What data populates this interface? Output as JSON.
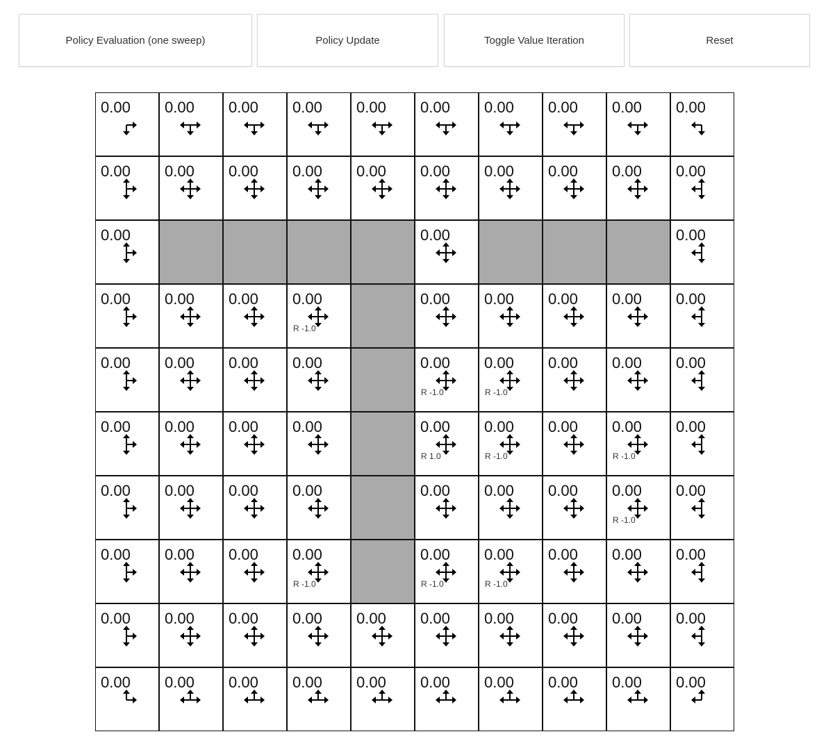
{
  "toolbar": {
    "policy_evaluation_label": "Policy Evaluation (one sweep)",
    "policy_update_label": "Policy Update",
    "toggle_value_iteration_label": "Toggle Value Iteration",
    "reset_label": "Reset"
  },
  "gridworld": {
    "rows": 10,
    "cols": 10,
    "wall_color": "#aaaaaa",
    "values": [
      [
        "0.00",
        "0.00",
        "0.00",
        "0.00",
        "0.00",
        "0.00",
        "0.00",
        "0.00",
        "0.00",
        "0.00"
      ],
      [
        "0.00",
        "0.00",
        "0.00",
        "0.00",
        "0.00",
        "0.00",
        "0.00",
        "0.00",
        "0.00",
        "0.00"
      ],
      [
        "0.00",
        null,
        null,
        null,
        null,
        "0.00",
        null,
        null,
        null,
        "0.00"
      ],
      [
        "0.00",
        "0.00",
        "0.00",
        "0.00",
        null,
        "0.00",
        "0.00",
        "0.00",
        "0.00",
        "0.00"
      ],
      [
        "0.00",
        "0.00",
        "0.00",
        "0.00",
        null,
        "0.00",
        "0.00",
        "0.00",
        "0.00",
        "0.00"
      ],
      [
        "0.00",
        "0.00",
        "0.00",
        "0.00",
        null,
        "0.00",
        "0.00",
        "0.00",
        "0.00",
        "0.00"
      ],
      [
        "0.00",
        "0.00",
        "0.00",
        "0.00",
        null,
        "0.00",
        "0.00",
        "0.00",
        "0.00",
        "0.00"
      ],
      [
        "0.00",
        "0.00",
        "0.00",
        "0.00",
        null,
        "0.00",
        "0.00",
        "0.00",
        "0.00",
        "0.00"
      ],
      [
        "0.00",
        "0.00",
        "0.00",
        "0.00",
        "0.00",
        "0.00",
        "0.00",
        "0.00",
        "0.00",
        "0.00"
      ],
      [
        "0.00",
        "0.00",
        "0.00",
        "0.00",
        "0.00",
        "0.00",
        "0.00",
        "0.00",
        "0.00",
        "0.00"
      ]
    ],
    "rewards": [
      [
        "",
        "",
        "",
        "",
        "",
        "",
        "",
        "",
        "",
        ""
      ],
      [
        "",
        "",
        "",
        "",
        "",
        "",
        "",
        "",
        "",
        ""
      ],
      [
        "",
        "",
        "",
        "",
        "",
        "",
        "",
        "",
        "",
        ""
      ],
      [
        "",
        "",
        "",
        "R -1.0",
        "",
        "",
        "",
        "",
        "",
        ""
      ],
      [
        "",
        "",
        "",
        "",
        "",
        "R -1.0",
        "R -1.0",
        "",
        "",
        ""
      ],
      [
        "",
        "",
        "",
        "",
        "",
        "R 1.0",
        "R -1.0",
        "",
        "R -1.0",
        ""
      ],
      [
        "",
        "",
        "",
        "",
        "",
        "",
        "",
        "",
        "R -1.0",
        ""
      ],
      [
        "",
        "",
        "",
        "R -1.0",
        "",
        "R -1.0",
        "R -1.0",
        "",
        "",
        ""
      ],
      [
        "",
        "",
        "",
        "",
        "",
        "",
        "",
        "",
        "",
        ""
      ],
      [
        "",
        "",
        "",
        "",
        "",
        "",
        "",
        "",
        "",
        ""
      ]
    ]
  }
}
